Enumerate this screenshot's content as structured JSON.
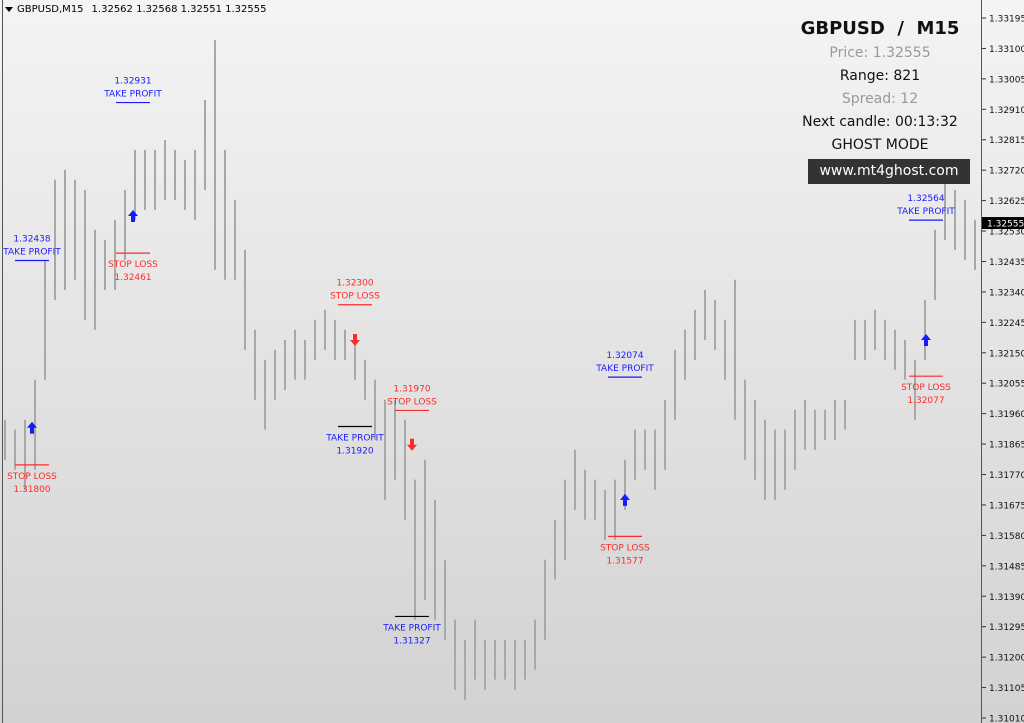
{
  "header": {
    "symbol": "GBPUSD,M15",
    "ohlc": "1.32562 1.32568 1.32551 1.32555"
  },
  "panel": {
    "title": "GBPUSD  /  M15",
    "price": "Price: 1.32555",
    "range": "Range: 821",
    "spread": "Spread: 12",
    "next_candle": "Next candle: 00:13:32",
    "mode": "GHOST MODE",
    "website": "www.mt4ghost.com"
  },
  "colors": {
    "bars": "#a8a8a8",
    "take_profit": "#1a1aff",
    "stop_loss": "#ff2a2a",
    "tp_line_short": "#000000",
    "price_label_bg": "#000000"
  },
  "chart_data": {
    "type": "bar",
    "subtype": "ohlc-high-low",
    "ylim": [
      1.3101,
      1.33195
    ],
    "yticks": [
      "1.33195",
      "1.33100",
      "1.33005",
      "1.32910",
      "1.32815",
      "1.32720",
      "1.32625",
      "1.32530",
      "1.32435",
      "1.32340",
      "1.32245",
      "1.32150",
      "1.32055",
      "1.31960",
      "1.31865",
      "1.31770",
      "1.31675",
      "1.31580",
      "1.31485",
      "1.31390",
      "1.31295",
      "1.31200",
      "1.31105",
      "1.31010"
    ],
    "current_price": "1.32555",
    "grid": false,
    "bars": [
      [
        1.31941,
        1.31816
      ],
      [
        1.3191,
        1.31785
      ],
      [
        1.31941,
        1.31722
      ],
      [
        1.32066,
        1.31785
      ],
      [
        1.3244,
        1.32066
      ],
      [
        1.3269,
        1.32315
      ],
      [
        1.32721,
        1.32346
      ],
      [
        1.3269,
        1.32378
      ],
      [
        1.32658,
        1.32253
      ],
      [
        1.32534,
        1.32222
      ],
      [
        1.32502,
        1.32346
      ],
      [
        1.32565,
        1.32346
      ],
      [
        1.32658,
        1.3244
      ],
      [
        1.32783,
        1.32565
      ],
      [
        1.32783,
        1.32596
      ],
      [
        1.32783,
        1.32596
      ],
      [
        1.32814,
        1.32627
      ],
      [
        1.32783,
        1.32627
      ],
      [
        1.32752,
        1.32596
      ],
      [
        1.32783,
        1.32565
      ],
      [
        1.32939,
        1.32658
      ],
      [
        1.33126,
        1.32409
      ],
      [
        1.32783,
        1.32378
      ],
      [
        1.32627,
        1.32378
      ],
      [
        1.32471,
        1.32159
      ],
      [
        1.32222,
        1.32003
      ],
      [
        1.32128,
        1.3191
      ],
      [
        1.32159,
        1.32003
      ],
      [
        1.3219,
        1.32034
      ],
      [
        1.32222,
        1.32066
      ],
      [
        1.3219,
        1.32066
      ],
      [
        1.32253,
        1.32128
      ],
      [
        1.32284,
        1.32159
      ],
      [
        1.32253,
        1.32128
      ],
      [
        1.32222,
        1.32128
      ],
      [
        1.3219,
        1.32066
      ],
      [
        1.32128,
        1.32003
      ],
      [
        1.32066,
        1.31878
      ],
      [
        1.32003,
        1.31691
      ],
      [
        1.32003,
        1.31754
      ],
      [
        1.31941,
        1.31629
      ],
      [
        1.31754,
        1.31317
      ],
      [
        1.31816,
        1.31379
      ],
      [
        1.31691,
        1.31317
      ],
      [
        1.31504,
        1.31254
      ],
      [
        1.31317,
        1.31098
      ],
      [
        1.31254,
        1.31067
      ],
      [
        1.31317,
        1.3113
      ],
      [
        1.31254,
        1.31098
      ],
      [
        1.31254,
        1.3113
      ],
      [
        1.31254,
        1.3113
      ],
      [
        1.31254,
        1.31098
      ],
      [
        1.31254,
        1.3113
      ],
      [
        1.31317,
        1.31161
      ],
      [
        1.31504,
        1.31254
      ],
      [
        1.31629,
        1.31442
      ],
      [
        1.31754,
        1.31504
      ],
      [
        1.31847,
        1.3166
      ],
      [
        1.31785,
        1.31629
      ],
      [
        1.31754,
        1.31629
      ],
      [
        1.31722,
        1.31566
      ],
      [
        1.31754,
        1.31566
      ],
      [
        1.31816,
        1.3166
      ],
      [
        1.3191,
        1.31754
      ],
      [
        1.3191,
        1.31785
      ],
      [
        1.3191,
        1.31722
      ],
      [
        1.32003,
        1.31785
      ],
      [
        1.32159,
        1.31941
      ],
      [
        1.32222,
        1.32066
      ],
      [
        1.32284,
        1.32128
      ],
      [
        1.32346,
        1.3219
      ],
      [
        1.32315,
        1.32159
      ],
      [
        1.32253,
        1.32066
      ],
      [
        1.32378,
        1.31941
      ],
      [
        1.32066,
        1.31816
      ],
      [
        1.32003,
        1.31754
      ],
      [
        1.31941,
        1.31691
      ],
      [
        1.3191,
        1.31691
      ],
      [
        1.3191,
        1.31722
      ],
      [
        1.31972,
        1.31785
      ],
      [
        1.32003,
        1.31847
      ],
      [
        1.31972,
        1.31847
      ],
      [
        1.31972,
        1.31878
      ],
      [
        1.32003,
        1.31878
      ],
      [
        1.32003,
        1.3191
      ],
      [
        1.32253,
        1.32128
      ],
      [
        1.32253,
        1.32128
      ],
      [
        1.32284,
        1.32159
      ],
      [
        1.32253,
        1.32128
      ],
      [
        1.32222,
        1.32097
      ],
      [
        1.3219,
        1.32066
      ],
      [
        1.32128,
        1.31941
      ],
      [
        1.32315,
        1.32128
      ],
      [
        1.32534,
        1.32315
      ],
      [
        1.3269,
        1.32502
      ],
      [
        1.32658,
        1.32471
      ],
      [
        1.32627,
        1.3244
      ],
      [
        1.32565,
        1.32409
      ]
    ],
    "signals": [
      {
        "bar": 2.7,
        "direction": "up",
        "arrow_price": 1.31916,
        "tp": 1.32438,
        "tp_text": "1.32438",
        "sl": 1.318,
        "sl_text": "1.31800"
      },
      {
        "bar": 12.8,
        "direction": "up",
        "arrow_price": 1.32577,
        "tp": 1.32931,
        "tp_text": "1.32931",
        "sl": 1.32461,
        "sl_text": "1.32461"
      },
      {
        "bar": 35,
        "direction": "down",
        "arrow_price": 1.3219,
        "tp": 1.3192,
        "tp_text": "1.31920",
        "sl": 1.323,
        "sl_text": "1.32300"
      },
      {
        "bar": 40.7,
        "direction": "down",
        "arrow_price": 1.31863,
        "tp": 1.31327,
        "tp_text": "1.31327",
        "sl": 1.3197,
        "sl_text": "1.31970"
      },
      {
        "bar": 62,
        "direction": "up",
        "arrow_price": 1.31691,
        "tp": 1.32074,
        "tp_text": "1.32074",
        "sl": 1.31577,
        "sl_text": "1.31577"
      },
      {
        "bar": 92.1,
        "direction": "up",
        "arrow_price": 1.3219,
        "tp": 1.32564,
        "tp_text": "1.32564",
        "sl": 1.32077,
        "sl_text": "1.32077"
      }
    ],
    "tp_label": "TAKE PROFIT",
    "sl_label": "STOP LOSS"
  }
}
